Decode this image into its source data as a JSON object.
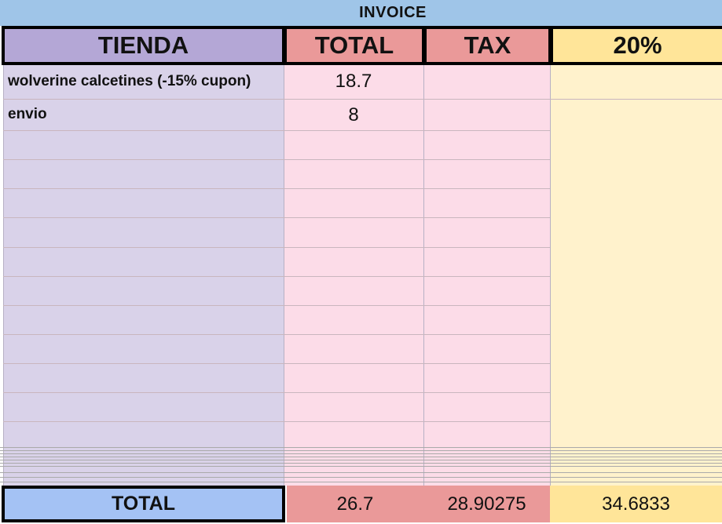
{
  "sheet": {
    "title": "INVOICE"
  },
  "headers": {
    "store": "TIENDA",
    "total": "TOTAL",
    "tax": "TAX",
    "percent": "20%"
  },
  "rows": [
    {
      "store": "wolverine calcetines (-15% cupon)",
      "total": "18.7",
      "tax": "",
      "percent": ""
    },
    {
      "store": "envio",
      "total": "8",
      "tax": "",
      "percent": ""
    }
  ],
  "footer": {
    "label": "TOTAL",
    "total": "26.7",
    "tax": "28.90275",
    "percent": "34.6833"
  },
  "colors": {
    "title_bar": "#9fc5e8",
    "store_header": "#b4a7d6",
    "total_header": "#ea9999",
    "percent_header": "#ffe599",
    "store_body": "#d9d2e9",
    "total_body": "#fcdce8",
    "percent_body": "#fff2cc",
    "footer_label": "#a4c2f4"
  }
}
